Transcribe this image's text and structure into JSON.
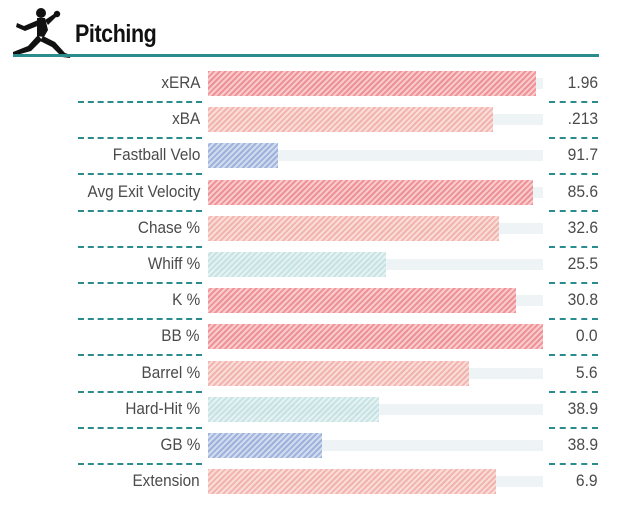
{
  "section": {
    "title": "Pitching",
    "icon": "pitcher-silhouette-icon"
  },
  "colors": {
    "accent": "#2b8c8e",
    "strong_red": "#ee7f84",
    "light_red": "#f2a99f",
    "light_teal": "#bfdfe0",
    "blue": "#8fa6d8",
    "track": "#eef3f5"
  },
  "chart_data": {
    "type": "bar",
    "orientation": "horizontal",
    "title": "Pitching",
    "xlim": [
      0,
      100
    ],
    "grid": false,
    "legend": "none",
    "categories": [
      "xERA",
      "xBA",
      "Fastball Velo",
      "Avg Exit Velocity",
      "Chase %",
      "Whiff %",
      "K %",
      "BB %",
      "Barrel %",
      "Hard-Hit %",
      "GB %",
      "Extension"
    ],
    "series": [
      {
        "values": [
          98,
          85,
          21,
          97,
          87,
          53,
          92,
          100,
          78,
          51,
          34,
          86
        ],
        "value_labels": [
          "1.96",
          ".213",
          "91.7",
          "85.6",
          "32.6",
          "25.5",
          "30.8",
          "0.0",
          "5.6",
          "38.9",
          "38.9",
          "6.9"
        ],
        "colors": [
          "#ee7f84",
          "#f2a99f",
          "#8fa6d8",
          "#ee7f84",
          "#f2a99f",
          "#bfdfe0",
          "#ee7f84",
          "#ee7f84",
          "#f2a99f",
          "#bfdfe0",
          "#8fa6d8",
          "#f2a99f"
        ]
      }
    ]
  }
}
